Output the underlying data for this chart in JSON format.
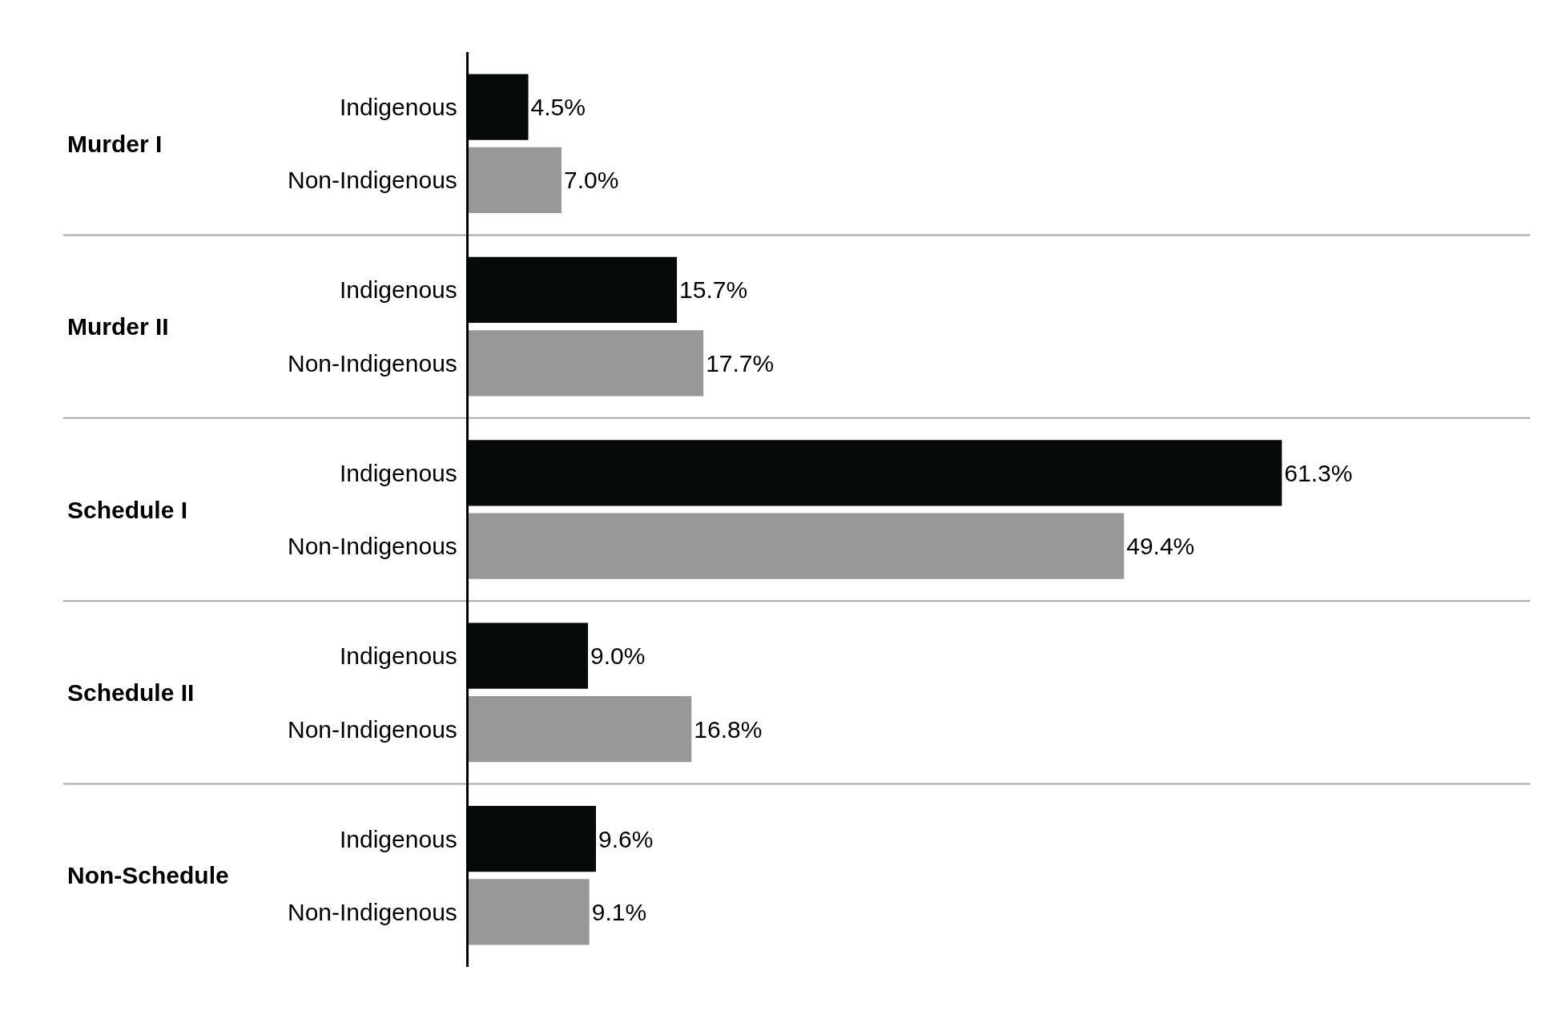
{
  "chart_data": {
    "type": "bar",
    "orientation": "horizontal",
    "categories": [
      "Murder I",
      "Murder II",
      "Schedule I",
      "Schedule II",
      "Non-Schedule"
    ],
    "series": [
      {
        "name": "Indigenous",
        "color": "#060a0b",
        "values": [
          4.5,
          15.7,
          61.3,
          9.0,
          9.6
        ],
        "value_labels": [
          "4.5%",
          "15.7%",
          "61.3%",
          "9.0%",
          "9.6%"
        ]
      },
      {
        "name": "Non-Indigenous",
        "color": "#999898",
        "values": [
          7.0,
          17.7,
          49.4,
          16.8,
          9.1
        ],
        "value_labels": [
          "7.0%",
          "17.7%",
          "49.4%",
          "16.8%",
          "9.1%"
        ]
      }
    ],
    "xlim": [
      0,
      80
    ],
    "tick_labels": "y",
    "grid": "y",
    "legend": false
  }
}
